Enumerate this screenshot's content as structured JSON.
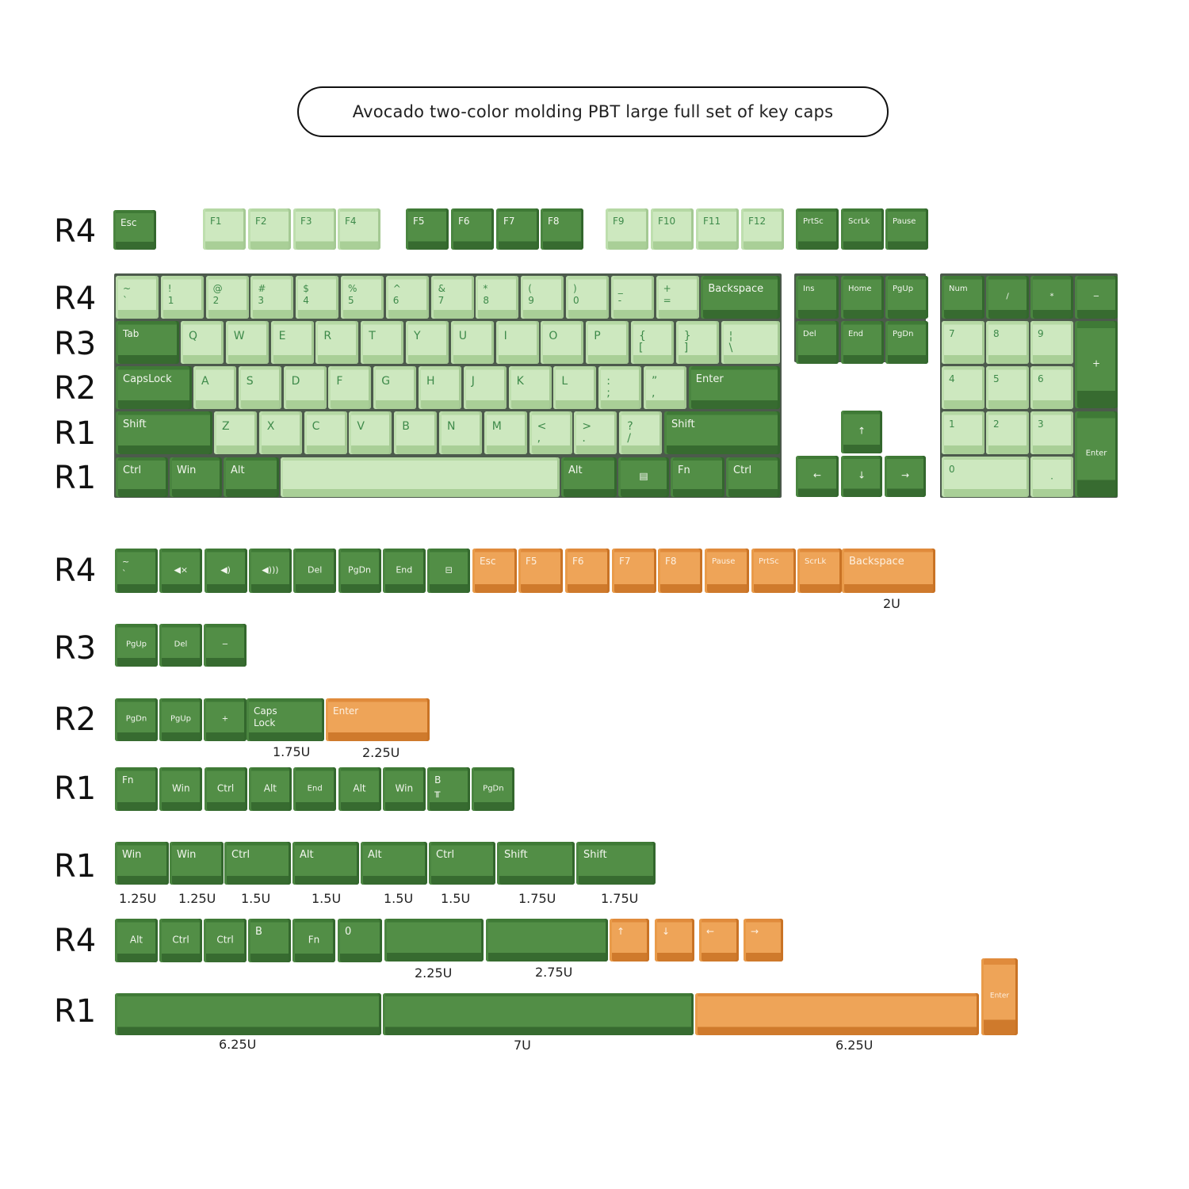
{
  "title": "Avocado two-color molding PBT large full set of key caps",
  "colors": {
    "light": "#cde8bf",
    "dark": "#528e46",
    "orange": "#eea458",
    "legend_light": "#3e8a4a"
  },
  "row_labels": [
    "R4",
    "R4",
    "R3",
    "R2",
    "R1",
    "R1",
    "R4",
    "R3",
    "R2",
    "R1",
    "R1",
    "R4",
    "R1"
  ],
  "main_keys": {
    "fn_row": [
      "Esc",
      "F1",
      "F2",
      "F3",
      "F4",
      "F5",
      "F6",
      "F7",
      "F8",
      "F9",
      "F10",
      "F11",
      "F12",
      "PrtSc",
      "ScrLk",
      "Pause"
    ],
    "number_row": [
      "~\n`",
      "!\n1",
      "@\n2",
      "#\n3",
      "$\n4",
      "%\n5",
      "^\n6",
      "&\n7",
      "*\n8",
      "(\n9",
      ")\n0",
      "_\n-",
      "+\n=",
      "Backspace"
    ],
    "tab_row": [
      "Tab",
      "Q",
      "W",
      "E",
      "R",
      "T",
      "Y",
      "U",
      "I",
      "O",
      "P",
      "{\n[",
      "}\n]",
      "¦\n\\"
    ],
    "caps_row": [
      "CapsLock",
      "A",
      "S",
      "D",
      "F",
      "G",
      "H",
      "J",
      "K",
      "L",
      ":\n;",
      "”\n,",
      "Enter"
    ],
    "shift_row": [
      "Shift",
      "Z",
      "X",
      "C",
      "V",
      "B",
      "N",
      "M",
      "<\n,",
      ">\n.",
      "?\n/",
      "Shift"
    ],
    "bottom_row": [
      "Ctrl",
      "Win",
      "Alt",
      "",
      "Alt",
      "▤",
      "Fn",
      "Ctrl"
    ],
    "nav_cluster": [
      "Ins",
      "Home",
      "PgUp",
      "Del",
      "End",
      "PgDn"
    ],
    "arrows": [
      "↑",
      "←",
      "↓",
      "→"
    ],
    "numpad": [
      "Num",
      "/",
      "*",
      "−",
      "7",
      "8",
      "9",
      "+",
      "4",
      "5",
      "6",
      "1",
      "2",
      "3",
      "Enter",
      "0",
      "."
    ]
  },
  "extras": {
    "row1": {
      "keys": [
        "~\n`",
        "◀×",
        "◀)",
        "◀)))",
        "Del",
        "PgDn",
        "End",
        "⊟",
        "Esc",
        "F5",
        "F6",
        "F7",
        "F8",
        "Pause",
        "PrtSc",
        "ScrLk",
        "Backspace"
      ],
      "dims": [
        "2U"
      ]
    },
    "row2": {
      "keys": [
        "PgUp",
        "Del",
        "−"
      ]
    },
    "row3": {
      "keys": [
        "PgDn",
        "PgUp",
        "+",
        "Caps\nLock",
        "Enter"
      ],
      "dims": [
        "1.75U",
        "2.25U"
      ]
    },
    "row4": {
      "keys": [
        "Fn",
        "Win",
        "Ctrl",
        "Alt",
        "End",
        "Alt",
        "Win",
        "B\n╥",
        "PgDn"
      ]
    },
    "row5": {
      "keys": [
        "Win",
        "Win",
        "Ctrl",
        "Alt",
        "Alt",
        "Ctrl",
        "Shift",
        "Shift"
      ],
      "dims": [
        "1.25U",
        "1.25U",
        "1.5U",
        "1.5U",
        "1.5U",
        "1.5U",
        "1.75U",
        "1.75U"
      ]
    },
    "row6": {
      "keys": [
        "Alt",
        "Ctrl",
        "Ctrl",
        "B",
        "Fn",
        "0",
        "",
        "",
        "↑",
        "↓",
        "←",
        "→"
      ],
      "dims": [
        "2.25U",
        "2.75U"
      ]
    },
    "row7": {
      "keys": [
        "",
        "",
        "",
        "Enter"
      ],
      "dims": [
        "6.25U",
        "7U",
        "6.25U"
      ]
    }
  }
}
